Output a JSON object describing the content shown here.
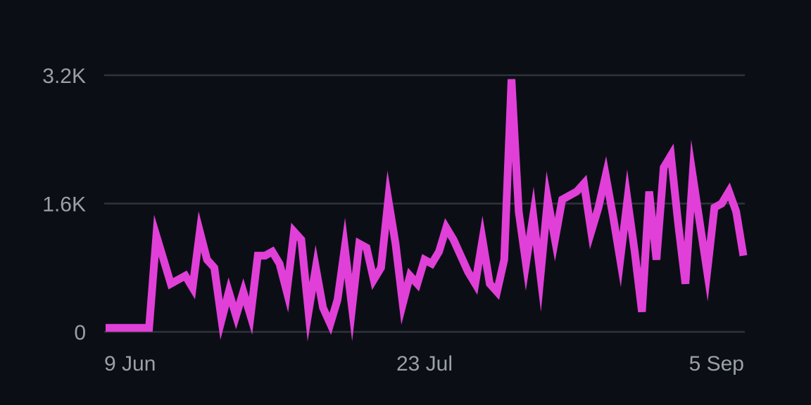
{
  "chart_data": {
    "type": "line",
    "title": "",
    "xlabel": "",
    "ylabel": "",
    "ylim": [
      0,
      3200
    ],
    "y_ticks": [
      {
        "value": 0,
        "label": "0"
      },
      {
        "value": 1600,
        "label": "1.6K"
      },
      {
        "value": 3200,
        "label": "3.2K"
      }
    ],
    "x_ticks": [
      {
        "value": "2024-06-09",
        "label": "9 Jun"
      },
      {
        "value": "2024-07-23",
        "label": "23 Jul"
      },
      {
        "value": "2024-09-05",
        "label": "5 Sep"
      }
    ],
    "x_range": [
      "2024-06-09",
      "2024-09-05"
    ],
    "grid": true,
    "legend": "none",
    "colors": {
      "background": "#0b0f15",
      "series": "#e040d8",
      "grid": "#2f333a",
      "tick_text": "#9aa0a8"
    },
    "series": [
      {
        "name": "",
        "x": [
          "2024-06-09",
          "2024-06-10",
          "2024-06-11",
          "2024-06-12",
          "2024-06-13",
          "2024-06-14",
          "2024-06-15",
          "2024-06-16",
          "2024-06-17",
          "2024-06-18",
          "2024-06-19",
          "2024-06-20",
          "2024-06-21",
          "2024-06-22",
          "2024-06-23",
          "2024-06-24",
          "2024-06-25",
          "2024-06-26",
          "2024-06-27",
          "2024-06-28",
          "2024-06-29",
          "2024-06-30",
          "2024-07-01",
          "2024-07-02",
          "2024-07-03",
          "2024-07-04",
          "2024-07-05",
          "2024-07-06",
          "2024-07-07",
          "2024-07-08",
          "2024-07-09",
          "2024-07-10",
          "2024-07-11",
          "2024-07-12",
          "2024-07-13",
          "2024-07-14",
          "2024-07-15",
          "2024-07-16",
          "2024-07-17",
          "2024-07-18",
          "2024-07-19",
          "2024-07-20",
          "2024-07-21",
          "2024-07-22",
          "2024-07-23",
          "2024-07-24",
          "2024-07-25",
          "2024-07-26",
          "2024-07-27",
          "2024-07-28",
          "2024-07-29",
          "2024-07-30",
          "2024-07-31",
          "2024-08-01",
          "2024-08-02",
          "2024-08-03",
          "2024-08-04",
          "2024-08-05",
          "2024-08-06",
          "2024-08-07",
          "2024-08-08",
          "2024-08-09",
          "2024-08-10",
          "2024-08-11",
          "2024-08-12",
          "2024-08-13",
          "2024-08-14",
          "2024-08-15",
          "2024-08-16",
          "2024-08-17",
          "2024-08-18",
          "2024-08-19",
          "2024-08-20",
          "2024-08-21",
          "2024-08-22",
          "2024-08-23",
          "2024-08-24",
          "2024-08-25",
          "2024-08-26",
          "2024-08-27",
          "2024-08-28",
          "2024-08-29",
          "2024-08-30",
          "2024-08-31",
          "2024-09-01",
          "2024-09-02",
          "2024-09-03",
          "2024-09-04",
          "2024-09-05"
        ],
        "values": [
          50,
          50,
          50,
          50,
          50,
          50,
          50,
          1200,
          900,
          600,
          650,
          700,
          550,
          1250,
          900,
          800,
          150,
          500,
          200,
          500,
          200,
          950,
          950,
          1000,
          850,
          500,
          1250,
          1150,
          250,
          800,
          300,
          100,
          400,
          1050,
          300,
          1100,
          1050,
          650,
          800,
          1650,
          1100,
          350,
          700,
          600,
          900,
          850,
          1000,
          1300,
          1150,
          950,
          750,
          600,
          1150,
          600,
          500,
          900,
          3150,
          1500,
          850,
          1450,
          700,
          1650,
          1150,
          1650,
          1700,
          1750,
          1850,
          1250,
          1550,
          1950,
          1450,
          900,
          1650,
          1000,
          250,
          1750,
          900,
          2050,
          2200,
          1350,
          600,
          1950,
          1350,
          750,
          1550,
          1600,
          1750,
          1500,
          950
        ]
      }
    ]
  }
}
